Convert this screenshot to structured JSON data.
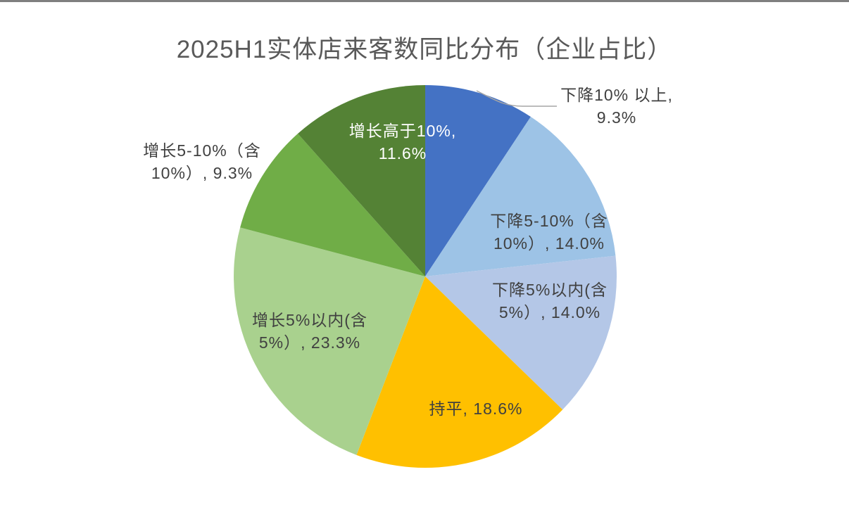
{
  "page": {
    "background": "#ffffff",
    "top_edge_color": "#7f7f7f"
  },
  "title_color": "#595959",
  "label_color": "#404040",
  "leader_line_color": "#a6a6a6",
  "chart_data": {
    "type": "pie",
    "title": "2025H1实体店来客数同比分布（企业占比）",
    "start_angle_deg": 0,
    "direction": "clockwise",
    "legend": "none",
    "slices": [
      {
        "key": "decline-over-10",
        "label": "下降10% 以上",
        "value_pct": 9.3,
        "color": "#4472C4",
        "label_placement": "outside",
        "label_lines": [
          "下降10% 以上,",
          "9.3%"
        ]
      },
      {
        "key": "decline-5-10",
        "label": "下降5-10%（含10%）",
        "value_pct": 14.0,
        "color": "#9DC3E6",
        "label_placement": "inside",
        "label_lines": [
          "下降5-10%（含",
          "10%）, 14.0%"
        ]
      },
      {
        "key": "decline-within-5",
        "label": "下降5%以内(含5%）",
        "value_pct": 14.0,
        "color": "#B4C7E7",
        "label_placement": "inside",
        "label_lines": [
          "下降5%以内(含",
          "5%）, 14.0%"
        ]
      },
      {
        "key": "flat",
        "label": "持平",
        "value_pct": 18.6,
        "color": "#FFC000",
        "label_placement": "inside",
        "label_lines": [
          "持平, 18.6%"
        ]
      },
      {
        "key": "growth-within-5",
        "label": "增长5%以内(含5%）",
        "value_pct": 23.3,
        "color": "#A9D18E",
        "label_placement": "inside",
        "label_lines": [
          "增长5%以内(含",
          "5%）, 23.3%"
        ]
      },
      {
        "key": "growth-5-10",
        "label": "增长5-10%（含10%）",
        "value_pct": 9.3,
        "color": "#70AD47",
        "label_placement": "outside",
        "label_lines": [
          "增长5-10%（含",
          "10%）, 9.3%"
        ]
      },
      {
        "key": "growth-over-10",
        "label": "增长高于10%",
        "value_pct": 11.6,
        "color": "#548235",
        "label_placement": "inside",
        "label_text_color": "#ffffff",
        "label_lines": [
          "增长高于10%,",
          "11.6%"
        ]
      }
    ]
  }
}
